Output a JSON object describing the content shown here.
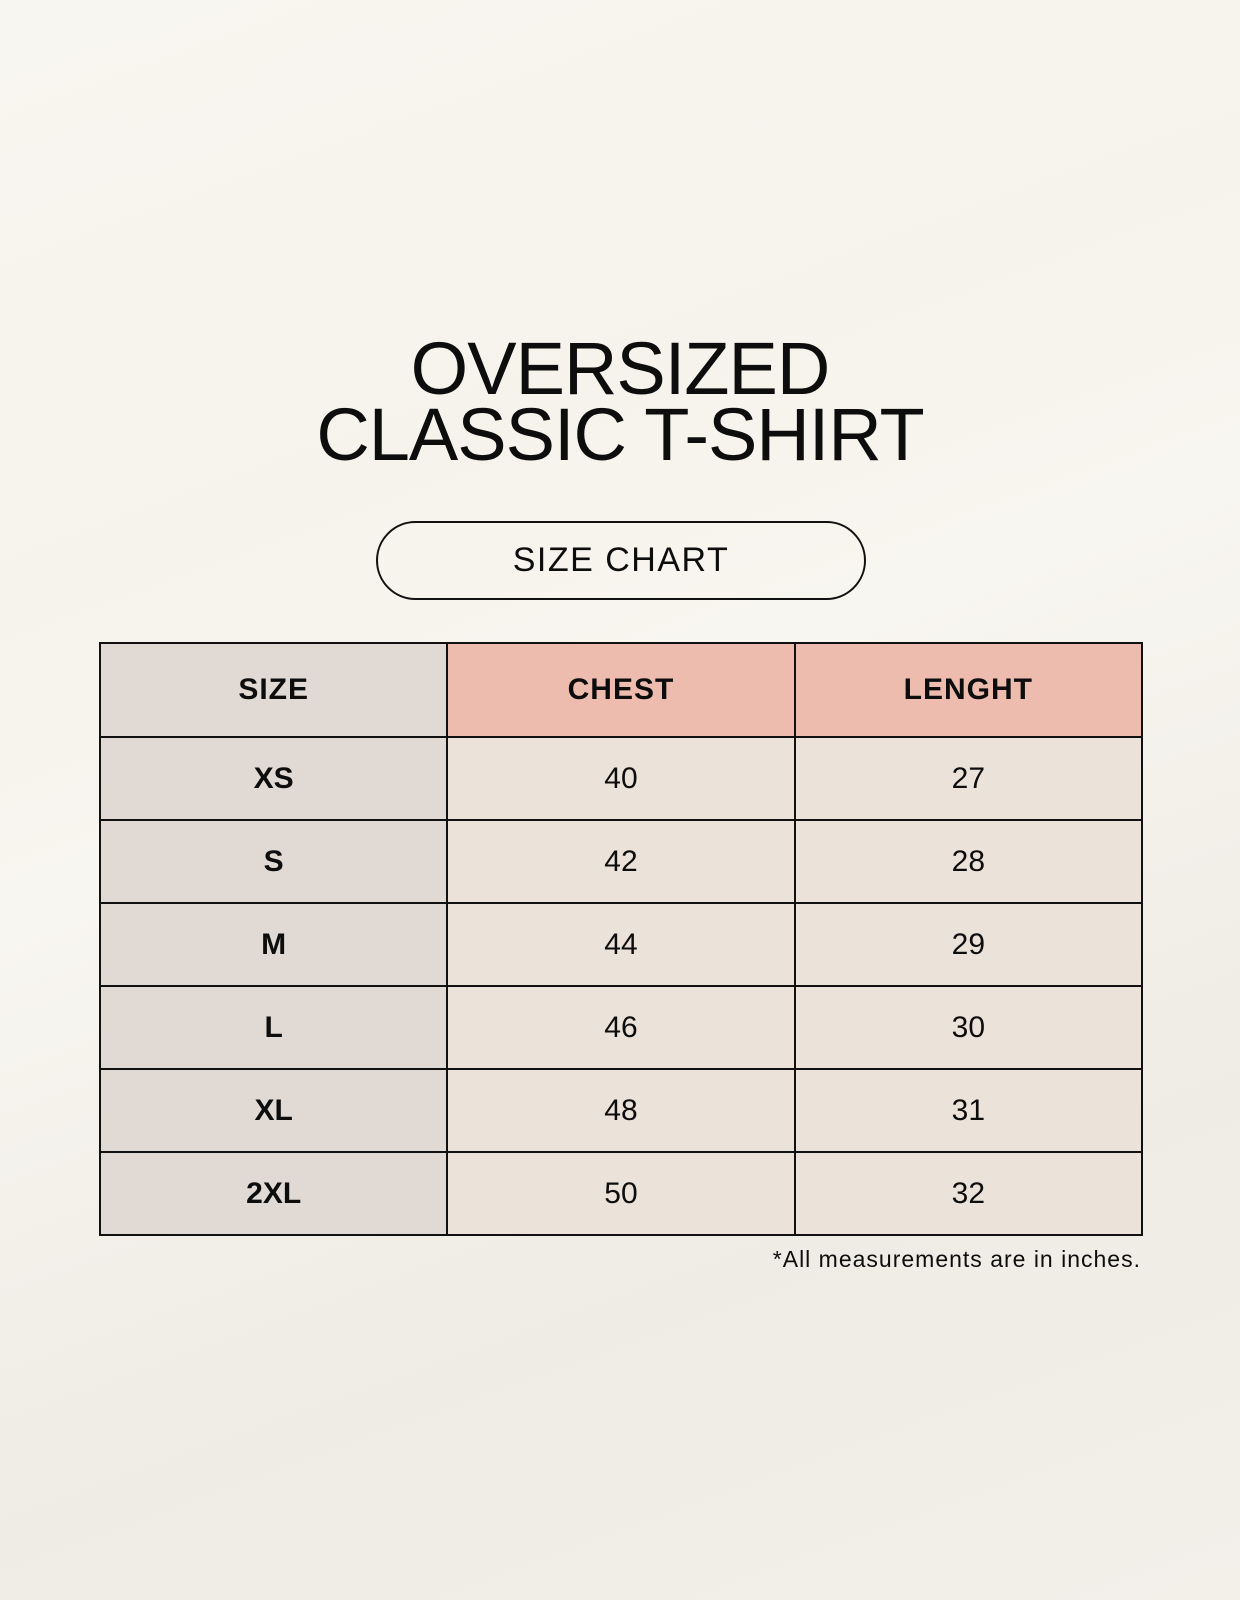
{
  "title": {
    "line1": "OVERSIZED",
    "line2": "CLASSIC T-SHIRT"
  },
  "subtitle": "SIZE CHART",
  "table": {
    "headers": [
      "SIZE",
      "CHEST",
      "LENGHT"
    ],
    "rows": [
      [
        "XS",
        "40",
        "27"
      ],
      [
        "S",
        "42",
        "28"
      ],
      [
        "M",
        "44",
        "29"
      ],
      [
        "L",
        "46",
        "30"
      ],
      [
        "XL",
        "48",
        "31"
      ],
      [
        "2XL",
        "50",
        "32"
      ]
    ]
  },
  "note": "*All measurements are in inches.",
  "colors": {
    "size_column": "#e0d9d4",
    "header_accent": "#edbcae",
    "cell_bg": "#ebe3d9"
  }
}
